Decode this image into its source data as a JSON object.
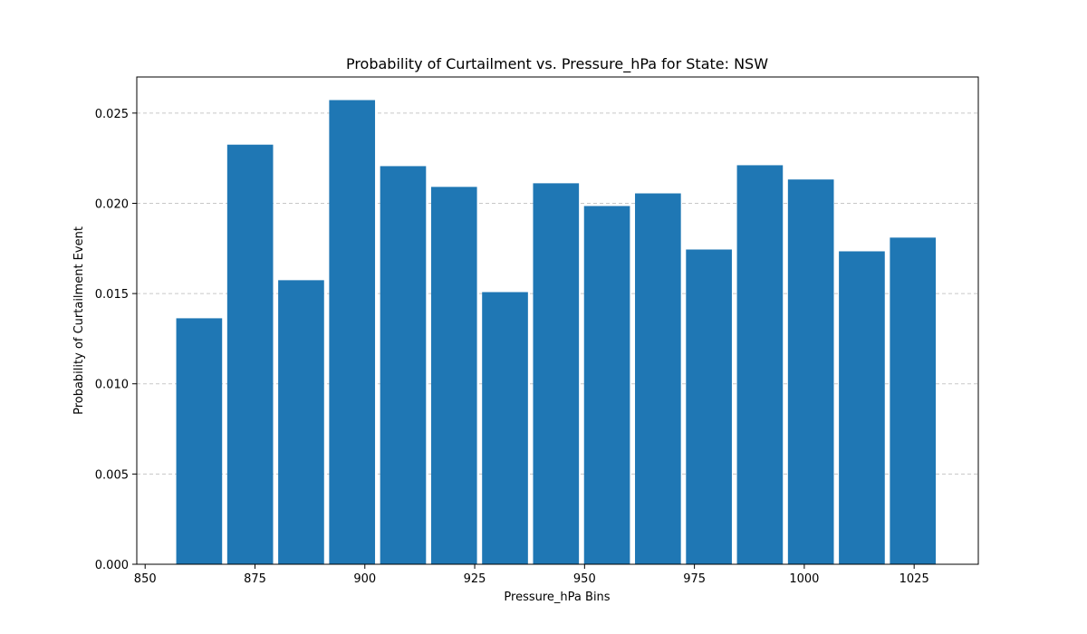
{
  "chart_data": {
    "type": "bar",
    "title": "Probability of Curtailment vs. Pressure_hPa for State: NSW",
    "xlabel": "Pressure_hPa Bins",
    "ylabel": "Probability of Curtailment Event",
    "bin_width": 11.6,
    "bar_width_fraction": 0.9,
    "x": [
      862.3,
      873.9,
      885.5,
      897.1,
      908.7,
      920.3,
      931.9,
      943.5,
      955.1,
      966.7,
      978.3,
      989.9,
      1001.5,
      1013.1,
      1024.7
    ],
    "values": [
      0.01363,
      0.02325,
      0.01574,
      0.02572,
      0.02206,
      0.02091,
      0.01508,
      0.02111,
      0.01985,
      0.02055,
      0.01744,
      0.02211,
      0.02132,
      0.01734,
      0.0181
    ],
    "xlim": [
      848.1,
      1039.6
    ],
    "ylim": [
      0,
      0.027
    ],
    "xticks": [
      850,
      875,
      900,
      925,
      950,
      975,
      1000,
      1025
    ],
    "xtick_labels": [
      "850",
      "875",
      "900",
      "925",
      "950",
      "975",
      "1000",
      "1025"
    ],
    "yticks": [
      0,
      0.005,
      0.01,
      0.015,
      0.02,
      0.025
    ],
    "ytick_labels": [
      "0.000",
      "0.005",
      "0.010",
      "0.015",
      "0.020",
      "0.025"
    ],
    "grid": "y-dashed",
    "colors": {
      "bar": "#1f77b4",
      "grid": "#c8c8c8",
      "axis": "#000000"
    }
  }
}
